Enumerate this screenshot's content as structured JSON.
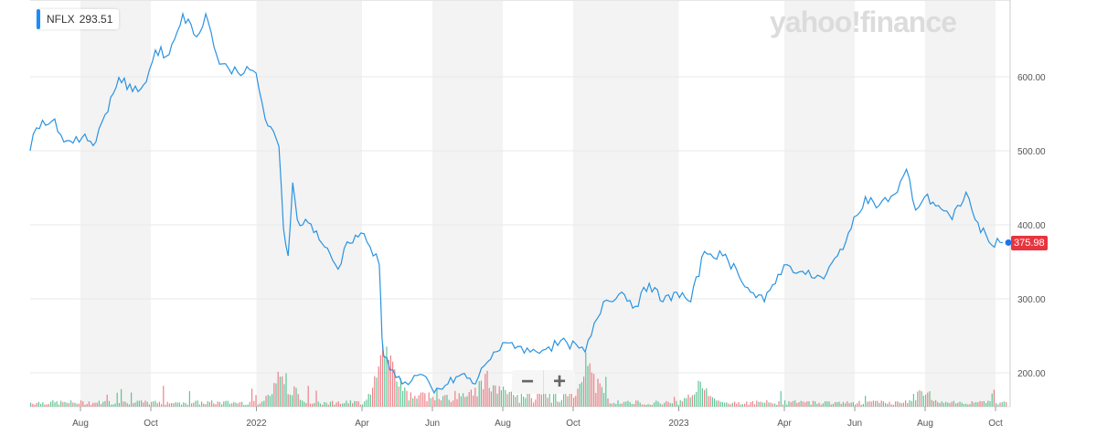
{
  "legend": {
    "symbol": "NFLX",
    "value": "293.51"
  },
  "logo": "yahoo!finance",
  "zoom": {
    "minus": "−",
    "plus": "+"
  },
  "last_price_label": "375.98",
  "colors": {
    "line": "#2a93e0",
    "up": "#3bb77e",
    "down": "#e8646c",
    "band": "#f3f3f3",
    "tag": "#e8343f"
  },
  "chart_data": {
    "type": "line",
    "title": "NFLX",
    "x_units": "months since 2021-07-01",
    "ylim": [
      150,
      700
    ],
    "y_ticks": [
      {
        "v": 600,
        "label": "600.00"
      },
      {
        "v": 500,
        "label": "500.00"
      },
      {
        "v": 400,
        "label": "400.00"
      },
      {
        "v": 300,
        "label": "300.00"
      },
      {
        "v": 200,
        "label": "200.00"
      }
    ],
    "x_ticks": [
      {
        "m": 1,
        "label": "Aug"
      },
      {
        "m": 3,
        "label": "Oct"
      },
      {
        "m": 6,
        "label": "2022"
      },
      {
        "m": 9,
        "label": "Apr"
      },
      {
        "m": 11,
        "label": "Jun"
      },
      {
        "m": 13,
        "label": "Aug"
      },
      {
        "m": 15,
        "label": "Oct"
      },
      {
        "m": 18,
        "label": "2023"
      },
      {
        "m": 21,
        "label": "Apr"
      },
      {
        "m": 23,
        "label": "Jun"
      },
      {
        "m": 25,
        "label": "Aug"
      },
      {
        "m": 27,
        "label": "Oct"
      }
    ],
    "series": [
      {
        "name": "NFLX",
        "points": [
          [
            -0.43,
            500
          ],
          [
            -0.25,
            531
          ],
          [
            0.27,
            543
          ],
          [
            0.53,
            512
          ],
          [
            1.05,
            518
          ],
          [
            1.44,
            512
          ],
          [
            1.7,
            549
          ],
          [
            2.09,
            599
          ],
          [
            2.48,
            580
          ],
          [
            2.87,
            593
          ],
          [
            3.13,
            636
          ],
          [
            3.52,
            630
          ],
          [
            3.91,
            685
          ],
          [
            4.3,
            654
          ],
          [
            4.56,
            685
          ],
          [
            4.95,
            617
          ],
          [
            5.21,
            611
          ],
          [
            5.99,
            605
          ],
          [
            6.25,
            543
          ],
          [
            6.64,
            506
          ],
          [
            6.77,
            395
          ],
          [
            6.9,
            358
          ],
          [
            7.03,
            457
          ],
          [
            7.16,
            407
          ],
          [
            7.55,
            401
          ],
          [
            7.94,
            370
          ],
          [
            8.32,
            340
          ],
          [
            8.58,
            377
          ],
          [
            8.97,
            389
          ],
          [
            9.23,
            370
          ],
          [
            9.49,
            346
          ],
          [
            9.57,
            247
          ],
          [
            9.62,
            222
          ],
          [
            9.88,
            204
          ],
          [
            10.14,
            185
          ],
          [
            10.66,
            198
          ],
          [
            11.05,
            173
          ],
          [
            11.44,
            185
          ],
          [
            11.83,
            198
          ],
          [
            12.22,
            185
          ],
          [
            12.48,
            210
          ],
          [
            12.74,
            228
          ],
          [
            13.26,
            241
          ],
          [
            13.78,
            228
          ],
          [
            14.3,
            235
          ],
          [
            14.82,
            241
          ],
          [
            15.34,
            228
          ],
          [
            15.86,
            296
          ],
          [
            16.38,
            309
          ],
          [
            16.77,
            290
          ],
          [
            17.16,
            321
          ],
          [
            17.55,
            296
          ],
          [
            17.94,
            309
          ],
          [
            18.34,
            296
          ],
          [
            18.73,
            364
          ],
          [
            19.25,
            358
          ],
          [
            19.64,
            340
          ],
          [
            20.04,
            309
          ],
          [
            20.43,
            296
          ],
          [
            20.82,
            333
          ],
          [
            21.08,
            346
          ],
          [
            21.6,
            333
          ],
          [
            22.12,
            327
          ],
          [
            22.51,
            358
          ],
          [
            22.9,
            395
          ],
          [
            23.3,
            438
          ],
          [
            23.69,
            426
          ],
          [
            24.21,
            444
          ],
          [
            24.47,
            475
          ],
          [
            24.73,
            420
          ],
          [
            24.99,
            438
          ],
          [
            25.38,
            426
          ],
          [
            25.77,
            407
          ],
          [
            26.16,
            444
          ],
          [
            26.42,
            407
          ],
          [
            26.81,
            377
          ],
          [
            27.21,
            376
          ]
        ]
      }
    ],
    "volume_spikes": [
      [
        6.7,
        0.9
      ],
      [
        9.6,
        0.95
      ],
      [
        9.7,
        0.6
      ],
      [
        12.5,
        0.5
      ],
      [
        15.4,
        0.7
      ],
      [
        18.6,
        0.45
      ],
      [
        24.9,
        0.3
      ]
    ],
    "last_value": 375.98
  }
}
